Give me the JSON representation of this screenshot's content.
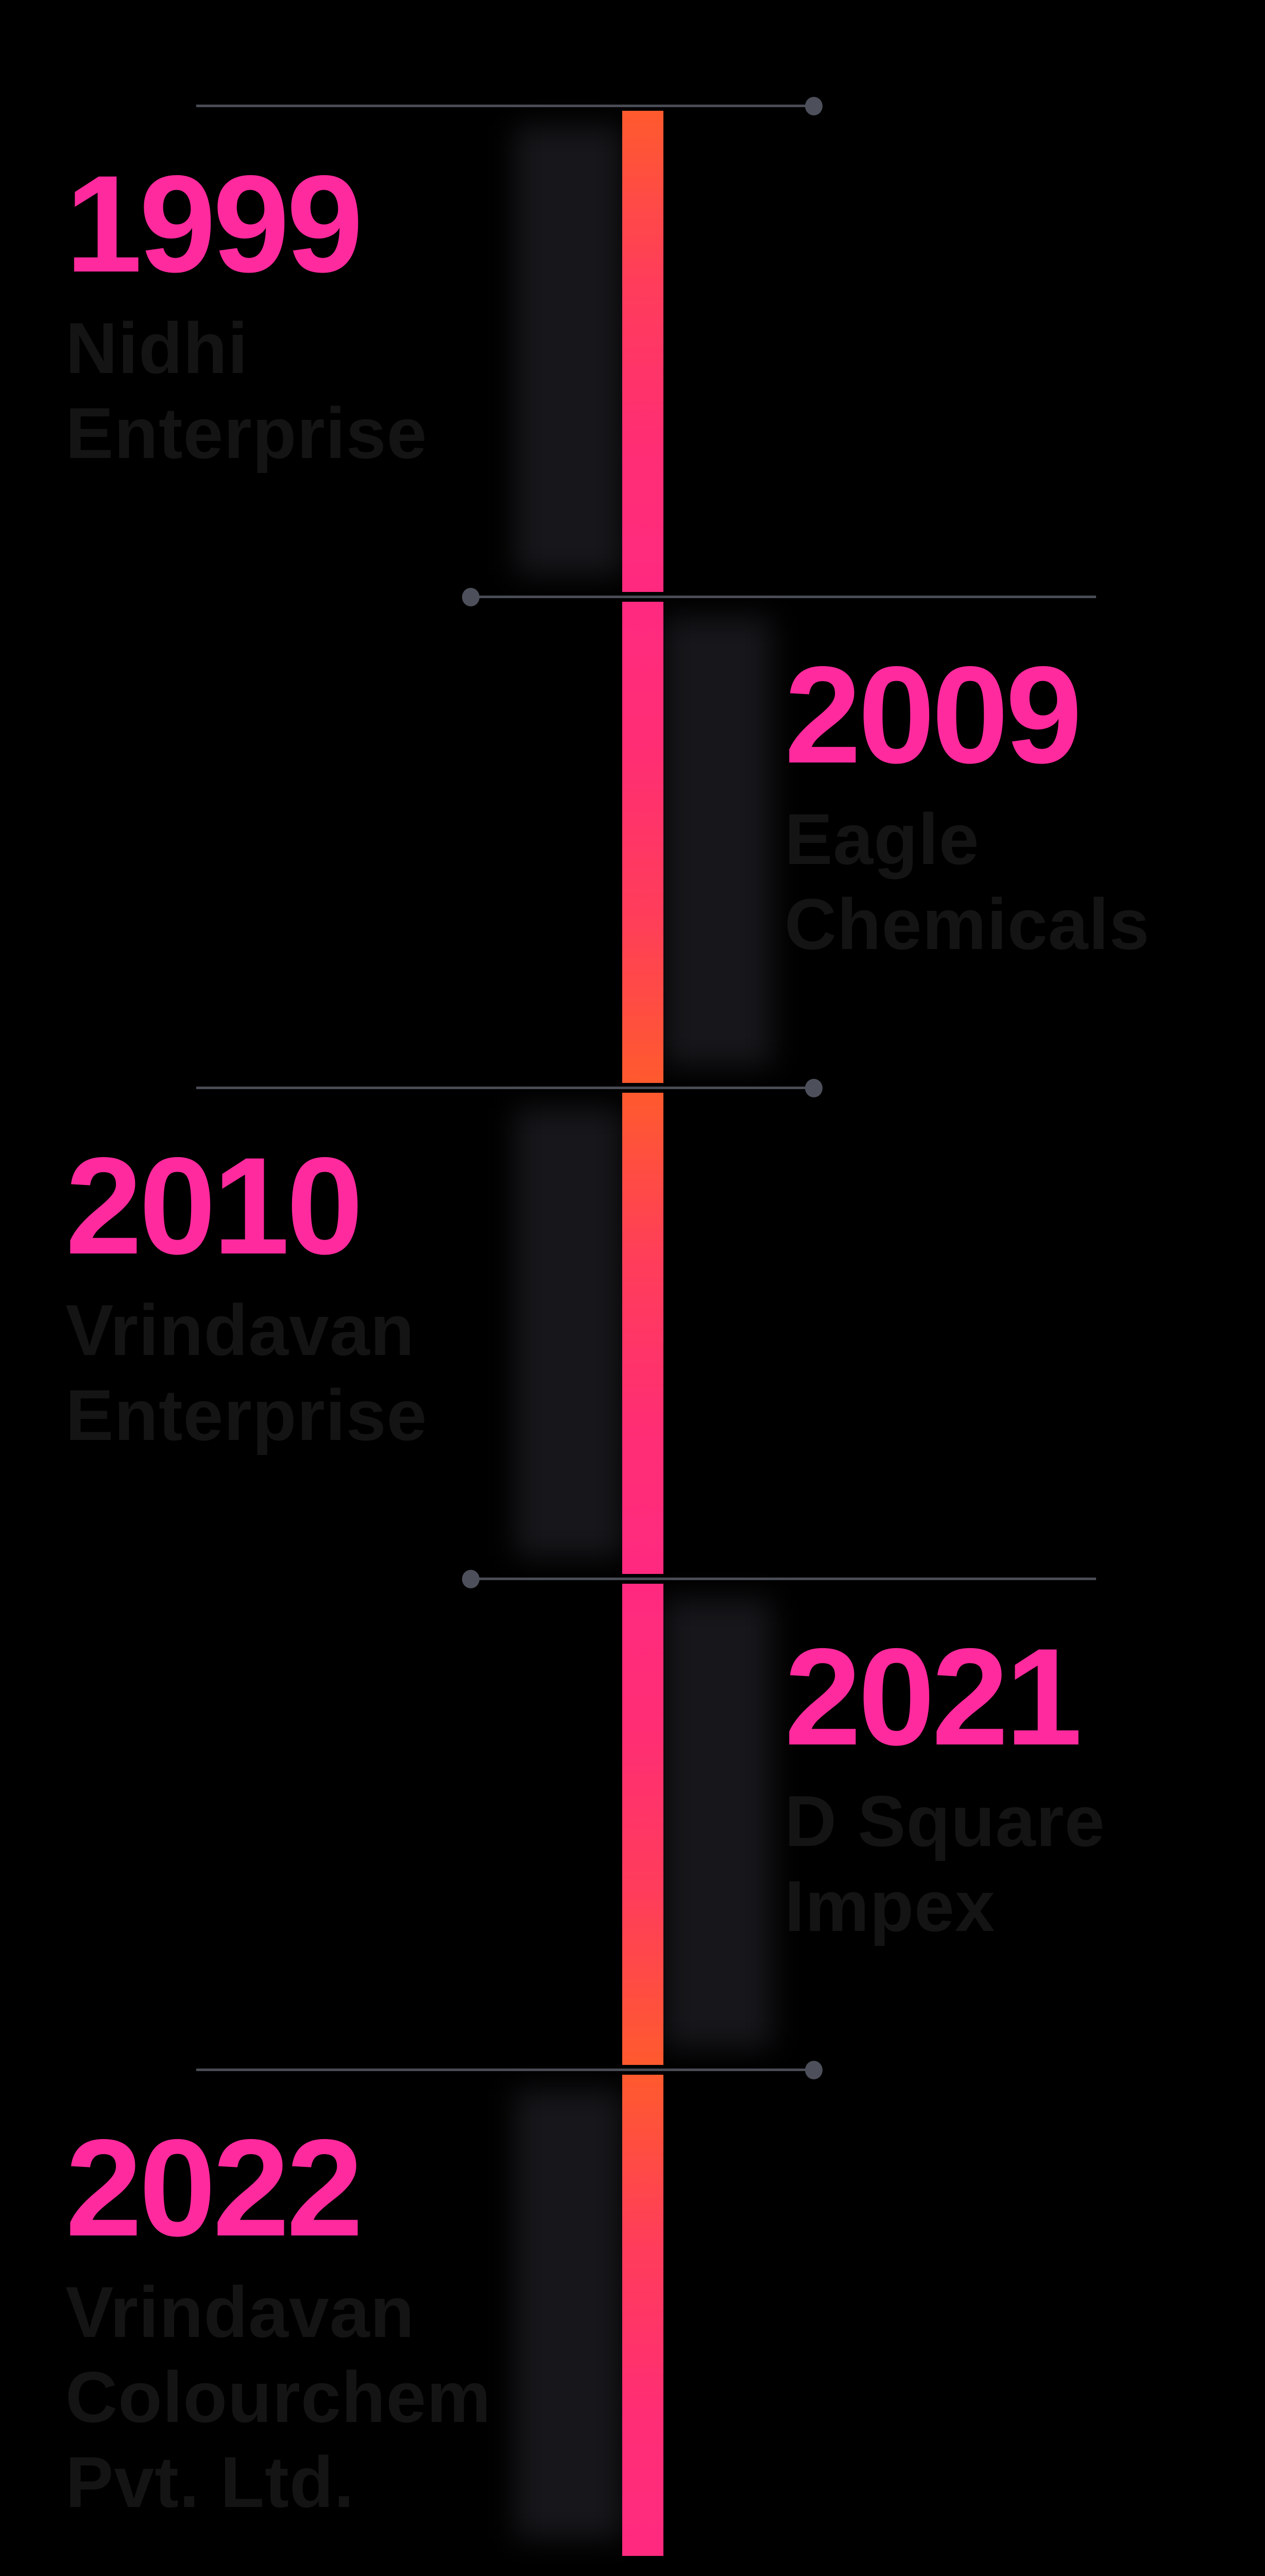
{
  "colors": {
    "background": "#000000",
    "year": "#ff2a9d",
    "company": "#141414",
    "bar_top": "#ff5a2e",
    "bar_bottom": "#ff2a80",
    "connector": "#4a4c55"
  },
  "timeline": [
    {
      "year": "1999",
      "name_lines": [
        "Nidhi",
        "Enterprise"
      ]
    },
    {
      "year": "2009",
      "name_lines": [
        "Eagle",
        "Chemicals"
      ]
    },
    {
      "year": "2010",
      "name_lines": [
        "Vrindavan",
        "Enterprise"
      ]
    },
    {
      "year": "2021",
      "name_lines": [
        "D Square",
        "Impex"
      ]
    },
    {
      "year": "2022",
      "name_lines": [
        "Vrindavan",
        "Colourchem",
        "Pvt. Ltd."
      ]
    }
  ]
}
